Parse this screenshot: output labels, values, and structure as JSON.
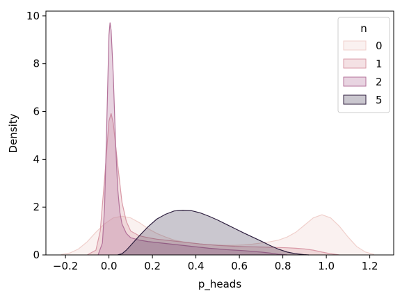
{
  "chart_data": {
    "type": "area",
    "xlabel": "p_heads",
    "ylabel": "Density",
    "xlim": [
      -0.29,
      1.31
    ],
    "ylim": [
      0,
      10.2
    ],
    "x_ticks": [
      -0.2,
      0.0,
      0.2,
      0.4,
      0.6,
      0.8,
      1.0,
      1.2
    ],
    "x_tick_labels": [
      "−0.2",
      "0.0",
      "0.2",
      "0.4",
      "0.6",
      "0.8",
      "1.0",
      "1.2"
    ],
    "y_ticks": [
      0,
      2,
      4,
      6,
      8,
      10
    ],
    "y_tick_labels": [
      "0",
      "2",
      "4",
      "6",
      "8",
      "10"
    ],
    "grid": false,
    "legend": {
      "title": "n",
      "position": "top-right",
      "entries": [
        "0",
        "1",
        "2",
        "5"
      ]
    },
    "series": [
      {
        "name": "0",
        "color": "#f0d0cc",
        "fill_opacity": 0.3,
        "x": [
          -0.22,
          -0.18,
          -0.14,
          -0.1,
          -0.06,
          -0.02,
          0.02,
          0.06,
          0.1,
          0.14,
          0.18,
          0.22,
          0.26,
          0.3,
          0.34,
          0.38,
          0.42,
          0.46,
          0.5,
          0.54,
          0.58,
          0.62,
          0.66,
          0.7,
          0.74,
          0.78,
          0.82,
          0.86,
          0.9,
          0.94,
          0.98,
          1.02,
          1.06,
          1.1,
          1.14,
          1.18,
          1.22
        ],
        "y": [
          0.02,
          0.08,
          0.25,
          0.55,
          0.95,
          1.3,
          1.55,
          1.62,
          1.55,
          1.35,
          1.1,
          0.9,
          0.75,
          0.62,
          0.55,
          0.5,
          0.46,
          0.43,
          0.41,
          0.4,
          0.4,
          0.42,
          0.45,
          0.5,
          0.55,
          0.62,
          0.75,
          0.95,
          1.25,
          1.55,
          1.68,
          1.55,
          1.2,
          0.75,
          0.35,
          0.12,
          0.02
        ]
      },
      {
        "name": "1",
        "color": "#d99aa7",
        "fill_opacity": 0.3,
        "x": [
          -0.1,
          -0.06,
          -0.04,
          -0.02,
          0.0,
          0.01,
          0.02,
          0.04,
          0.06,
          0.08,
          0.1,
          0.14,
          0.18,
          0.22,
          0.26,
          0.3,
          0.34,
          0.38,
          0.42,
          0.46,
          0.5,
          0.54,
          0.58,
          0.62,
          0.66,
          0.7,
          0.74,
          0.78,
          0.82,
          0.86,
          0.9,
          0.94,
          0.98,
          1.02,
          1.06
        ],
        "y": [
          0.0,
          0.2,
          1.0,
          3.2,
          5.6,
          5.92,
          5.5,
          3.8,
          2.2,
          1.4,
          1.0,
          0.8,
          0.72,
          0.66,
          0.62,
          0.58,
          0.54,
          0.5,
          0.46,
          0.43,
          0.4,
          0.38,
          0.36,
          0.35,
          0.34,
          0.33,
          0.32,
          0.31,
          0.3,
          0.28,
          0.25,
          0.2,
          0.12,
          0.05,
          0.0
        ]
      },
      {
        "name": "2",
        "color": "#b3729a",
        "fill_opacity": 0.3,
        "x": [
          -0.05,
          -0.03,
          -0.02,
          -0.01,
          0.0,
          0.005,
          0.01,
          0.02,
          0.03,
          0.04,
          0.05,
          0.06,
          0.08,
          0.1,
          0.14,
          0.18,
          0.22,
          0.26,
          0.3,
          0.34,
          0.38,
          0.42,
          0.46,
          0.5,
          0.54,
          0.58,
          0.62,
          0.66,
          0.7,
          0.74,
          0.78,
          0.82
        ],
        "y": [
          0.0,
          0.5,
          2.0,
          5.5,
          9.2,
          9.72,
          9.4,
          7.5,
          4.8,
          2.8,
          1.8,
          1.3,
          0.9,
          0.72,
          0.62,
          0.56,
          0.52,
          0.48,
          0.44,
          0.4,
          0.36,
          0.32,
          0.28,
          0.25,
          0.22,
          0.2,
          0.18,
          0.15,
          0.12,
          0.08,
          0.03,
          0.0
        ]
      },
      {
        "name": "5",
        "color": "#2d1e3e",
        "fill_opacity": 0.25,
        "x": [
          0.04,
          0.06,
          0.08,
          0.1,
          0.14,
          0.18,
          0.22,
          0.26,
          0.3,
          0.34,
          0.38,
          0.42,
          0.46,
          0.5,
          0.54,
          0.58,
          0.62,
          0.66,
          0.7,
          0.74,
          0.78,
          0.82,
          0.86,
          0.9,
          0.92
        ],
        "y": [
          0.0,
          0.05,
          0.2,
          0.4,
          0.8,
          1.18,
          1.5,
          1.7,
          1.84,
          1.87,
          1.85,
          1.76,
          1.62,
          1.46,
          1.28,
          1.1,
          0.92,
          0.75,
          0.58,
          0.4,
          0.24,
          0.12,
          0.05,
          0.01,
          0.0
        ]
      }
    ]
  }
}
